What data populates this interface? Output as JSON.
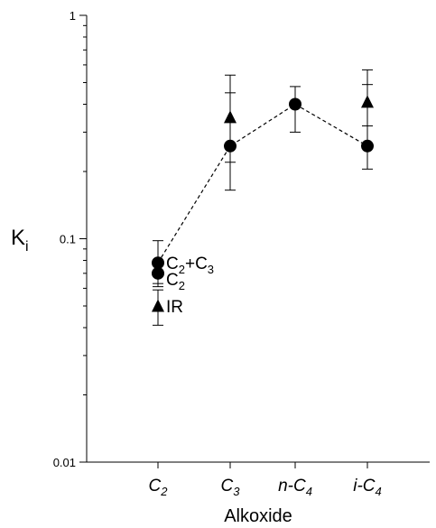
{
  "chart_data": {
    "type": "scatter",
    "title": "",
    "xlabel": "Alkoxide",
    "ylabel": "K",
    "ylabel_subscript": "i",
    "yscale": "log",
    "ylim": [
      0.01,
      1
    ],
    "y_ticks": [
      0.01,
      0.1,
      1
    ],
    "y_tick_labels": [
      "0.01",
      "0.1",
      "1"
    ],
    "grid": false,
    "categories": [
      {
        "base": "C",
        "sub": "2",
        "prefix": ""
      },
      {
        "base": "C",
        "sub": "3",
        "prefix": ""
      },
      {
        "base": "C",
        "sub": "4",
        "prefix": "n-"
      },
      {
        "base": "C",
        "sub": "4",
        "prefix": "i-"
      }
    ],
    "series": [
      {
        "marker": "circle",
        "line": "dashed",
        "points": [
          {
            "x": 0,
            "y": 0.078,
            "err_low": 0.061,
            "err_high": 0.098
          },
          {
            "x": 1,
            "y": 0.26,
            "err_low": 0.165,
            "err_high": 0.54
          },
          {
            "x": 2,
            "y": 0.4,
            "err_low": 0.3,
            "err_high": 0.48
          },
          {
            "x": 3,
            "y": 0.26,
            "err_low": 0.205,
            "err_high": 0.57
          }
        ]
      },
      {
        "marker": "circle",
        "line": "none",
        "points": [
          {
            "x": 0,
            "y": 0.07,
            "err_low": 0.063,
            "err_high": 0.078
          }
        ]
      },
      {
        "marker": "triangle",
        "line": "none",
        "points": [
          {
            "x": 0,
            "y": 0.05,
            "err_low": 0.041,
            "err_high": 0.059
          },
          {
            "x": 1,
            "y": 0.35,
            "err_low": 0.22,
            "err_high": 0.45
          },
          {
            "x": 3,
            "y": 0.41,
            "err_low": 0.32,
            "err_high": 0.49
          }
        ]
      }
    ],
    "annotations": [
      {
        "text": "C",
        "sub": "2",
        "suffix": "+C",
        "sub2": "3",
        "x": 0,
        "y": 0.078
      },
      {
        "text": "C",
        "sub": "2",
        "suffix": "",
        "sub2": "",
        "x": 0,
        "y": 0.066
      },
      {
        "text": "IR",
        "sub": "",
        "suffix": "",
        "sub2": "",
        "x": 0,
        "y": 0.05
      }
    ]
  }
}
